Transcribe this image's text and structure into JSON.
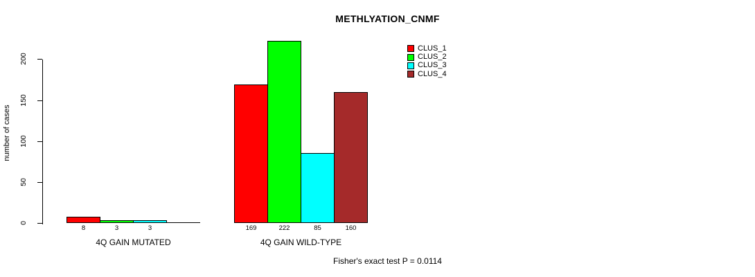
{
  "chart_data": {
    "type": "bar",
    "title": "METHLYATION_CNMF",
    "ylabel": "number of cases",
    "xlabel": "",
    "categories": [
      "4Q GAIN MUTATED",
      "4Q GAIN WILD-TYPE"
    ],
    "series": [
      {
        "name": "CLUS_1",
        "color": "#ff0000",
        "values": [
          8,
          169
        ]
      },
      {
        "name": "CLUS_2",
        "color": "#00ff00",
        "values": [
          3,
          222
        ]
      },
      {
        "name": "CLUS_3",
        "color": "#00ffff",
        "values": [
          3,
          85
        ]
      },
      {
        "name": "CLUS_4",
        "color": "#a52a2a",
        "values": [
          0,
          160
        ]
      }
    ],
    "bar_value_labels": [
      [
        "8",
        "3",
        "3",
        ""
      ],
      [
        "169",
        "222",
        "85",
        "160"
      ]
    ],
    "yticks": [
      0,
      50,
      100,
      150,
      200
    ],
    "ylim": [
      0,
      222
    ],
    "grid": false,
    "legend": {
      "position": "top-right",
      "entries": [
        "CLUS_1",
        "CLUS_2",
        "CLUS_3",
        "CLUS_4"
      ]
    },
    "annotation": "Fisher's exact test P = 0.0114",
    "axis_color": "#000000",
    "text_color": "#000000",
    "background": "#ffffff"
  }
}
